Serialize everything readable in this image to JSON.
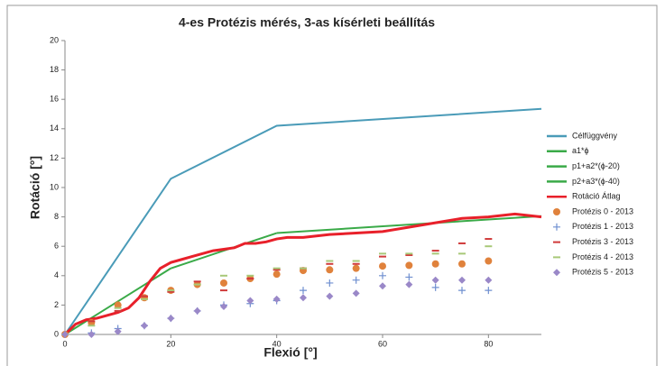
{
  "chart_data": {
    "type": "line",
    "title": "4-es Protézis mérés, 3-as kísérleti beállítás",
    "x_label": "Flexió [°]",
    "y_label": "Rotáció [°]",
    "xlim": [
      0,
      90
    ],
    "xticks": [
      0,
      20,
      40,
      60,
      80
    ],
    "ylim": [
      0,
      20
    ],
    "yticks": [
      0,
      2,
      4,
      6,
      8,
      10,
      12,
      14,
      16,
      18,
      20
    ],
    "legend": "right",
    "series": [
      {
        "name": "Célfüggvény",
        "color": "#4a9bb8",
        "marker": "none",
        "x": [
          0,
          20,
          40,
          90
        ],
        "values": [
          0,
          10.6,
          14.2,
          15.35
        ]
      },
      {
        "name": "a1*ϕ",
        "color": "#3aaa48",
        "marker": "none",
        "x": [
          0,
          20
        ],
        "values": [
          0,
          4.5
        ]
      },
      {
        "name": "p1+a2*(ϕ-20)",
        "color": "#3aaa48",
        "marker": "none",
        "x": [
          20,
          40
        ],
        "values": [
          4.5,
          6.9
        ]
      },
      {
        "name": "p2+a3*(ϕ-40)",
        "color": "#3aaa48",
        "marker": "none",
        "x": [
          40,
          90
        ],
        "values": [
          6.9,
          8.05
        ]
      },
      {
        "name": "Rotáció Átlag",
        "color": "#e8202a",
        "marker": "none",
        "x": [
          0,
          2,
          4,
          6,
          8,
          10,
          12,
          14,
          16,
          18,
          20,
          22,
          24,
          26,
          28,
          30,
          32,
          34,
          36,
          38,
          40,
          42,
          45,
          50,
          55,
          60,
          65,
          70,
          75,
          80,
          85,
          90
        ],
        "values": [
          0,
          0.7,
          1.0,
          1.1,
          1.3,
          1.5,
          1.8,
          2.5,
          3.6,
          4.5,
          4.9,
          5.1,
          5.3,
          5.5,
          5.7,
          5.8,
          5.9,
          6.2,
          6.2,
          6.3,
          6.5,
          6.6,
          6.6,
          6.8,
          6.9,
          7.0,
          7.3,
          7.6,
          7.9,
          8.0,
          8.2,
          8.0
        ]
      },
      {
        "name": "Protézis 0 - 2013",
        "color": "#e0823c",
        "marker": "circle",
        "x": [
          0,
          5,
          10,
          15,
          20,
          25,
          30,
          35,
          40,
          45,
          50,
          55,
          60,
          65,
          70,
          75,
          80
        ],
        "values": [
          0,
          0.8,
          2.0,
          2.5,
          3.0,
          3.4,
          3.5,
          3.8,
          4.1,
          4.35,
          4.4,
          4.5,
          4.65,
          4.7,
          4.8,
          4.8,
          5.0
        ]
      },
      {
        "name": "Protézis 1 - 2013",
        "color": "#6f8fd0",
        "marker": "plus",
        "x": [
          0,
          5,
          10,
          15,
          20,
          25,
          30,
          35,
          40,
          45,
          50,
          55,
          60,
          65,
          70,
          75,
          80
        ],
        "values": [
          0,
          0.1,
          0.4,
          0.6,
          1.1,
          1.6,
          2.0,
          2.1,
          2.3,
          3.0,
          3.5,
          3.7,
          4.0,
          3.9,
          3.2,
          3.0,
          3.0
        ]
      },
      {
        "name": "Protézis 3 - 2013",
        "color": "#d03a3a",
        "marker": "dash",
        "x": [
          0,
          5,
          10,
          15,
          20,
          25,
          30,
          35,
          40,
          45,
          50,
          55,
          60,
          65,
          70,
          75,
          80
        ],
        "values": [
          0,
          0.9,
          1.6,
          2.6,
          2.9,
          3.6,
          3.0,
          3.8,
          4.4,
          4.5,
          4.8,
          4.8,
          5.3,
          5.4,
          5.7,
          6.2,
          6.5
        ]
      },
      {
        "name": "Protézis 4 - 2013",
        "color": "#a8c878",
        "marker": "dash",
        "x": [
          0,
          5,
          10,
          15,
          20,
          25,
          30,
          35,
          40,
          45,
          50,
          55,
          60,
          65,
          70,
          75,
          80
        ],
        "values": [
          0,
          0.6,
          1.8,
          2.4,
          3.0,
          3.4,
          4.0,
          4.0,
          4.5,
          4.5,
          5.0,
          5.0,
          5.5,
          5.5,
          5.5,
          5.5,
          6.0
        ]
      },
      {
        "name": "Protézis 5 - 2013",
        "color": "#9a88c8",
        "marker": "diamond",
        "x": [
          0,
          5,
          10,
          15,
          20,
          25,
          30,
          35,
          40,
          45,
          50,
          55,
          60,
          65,
          70,
          75,
          80
        ],
        "values": [
          0,
          0,
          0.2,
          0.6,
          1.1,
          1.6,
          1.9,
          2.3,
          2.4,
          2.5,
          2.6,
          2.8,
          3.3,
          3.4,
          3.7,
          3.7,
          3.7
        ]
      }
    ]
  }
}
